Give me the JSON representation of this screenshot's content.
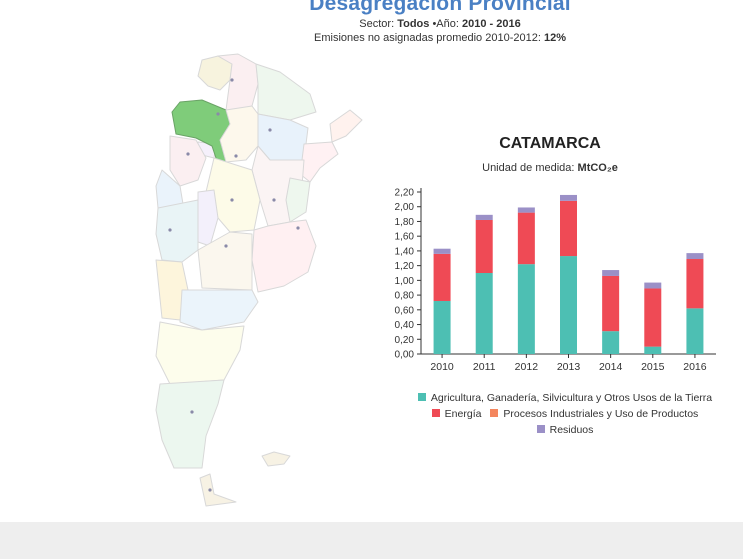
{
  "header": {
    "title": "Desagregación Provincial",
    "sector_label": "Sector:",
    "sector_value": "Todos",
    "year_label": "•Año:",
    "year_value": "2010 - 2016",
    "emissions_label": "Emisiones no asignadas promedio 2010-2012:",
    "emissions_value": "12%"
  },
  "map": {
    "selected_province": "Catamarca",
    "highlight_color": "#7fcc7a"
  },
  "chart_data": {
    "type": "bar",
    "stacked": true,
    "title": "CATAMARCA",
    "unit_label": "Unidad de medida:",
    "unit_value": "MtCO₂e",
    "categories": [
      "2010",
      "2011",
      "2012",
      "2013",
      "2014",
      "2015",
      "2016"
    ],
    "series": [
      {
        "name": "Agricultura, Ganadería, Silvicultura y Otros Usos de la Tierra",
        "color": "#4dbfb3",
        "values": [
          0.72,
          1.1,
          1.22,
          1.33,
          0.31,
          0.1,
          0.62
        ]
      },
      {
        "name": "Energía",
        "color": "#ef4a55",
        "values": [
          0.64,
          0.72,
          0.7,
          0.75,
          0.75,
          0.79,
          0.67
        ]
      },
      {
        "name": "Procesos Industriales y Uso de Productos",
        "color": "#f4865e",
        "values": [
          0.0,
          0.0,
          0.0,
          0.0,
          0.0,
          0.0,
          0.0
        ]
      },
      {
        "name": "Residuos",
        "color": "#9b90c7",
        "values": [
          0.07,
          0.07,
          0.07,
          0.08,
          0.08,
          0.08,
          0.08
        ]
      }
    ],
    "yticks": [
      "0,00",
      "0,20",
      "0,40",
      "0,60",
      "0,80",
      "1,00",
      "1,20",
      "1,40",
      "1,60",
      "1,80",
      "2,00",
      "2,20"
    ],
    "ylim": [
      0,
      2.2
    ],
    "grid": false,
    "legend_position": "bottom"
  }
}
